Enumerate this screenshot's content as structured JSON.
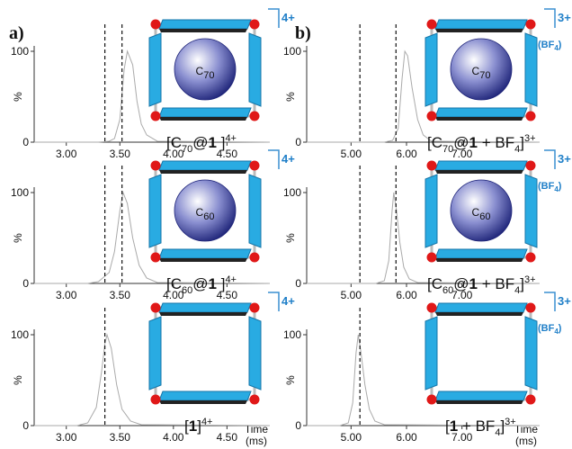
{
  "panel_labels": [
    "a)",
    "b)"
  ],
  "chart_data": [
    {
      "type": "line",
      "ylabel": "%",
      "ylim": [
        0,
        100
      ],
      "yticks": [
        0,
        100
      ],
      "xlim": [
        2.7,
        4.9
      ],
      "xticks": [
        {
          "value": 3,
          "label": "3.00"
        },
        {
          "value": 3.5,
          "label": "3.50"
        },
        {
          "value": 4,
          "label": "4.00"
        },
        {
          "value": 4.5,
          "label": "4.50"
        }
      ],
      "x": [
        2.7,
        3.3,
        3.4,
        3.45,
        3.5,
        3.54,
        3.57,
        3.62,
        3.66,
        3.7,
        3.75,
        3.85,
        4.9
      ],
      "values": [
        0,
        0,
        1,
        4,
        25,
        80,
        100,
        85,
        45,
        20,
        8,
        1,
        0
      ],
      "color": "#aaaaaa",
      "vlines": [
        3.36,
        3.52
      ],
      "label": [
        "[C",
        "70",
        "@",
        "1",
        " ]",
        "4+"
      ],
      "guest": [
        "C",
        "70"
      ],
      "charge": "4+"
    },
    {
      "type": "line",
      "ylabel": "%",
      "ylim": [
        0,
        100
      ],
      "yticks": [
        0,
        100
      ],
      "xlim": [
        2.7,
        4.9
      ],
      "xticks": [
        {
          "value": 3,
          "label": "3.00"
        },
        {
          "value": 3.5,
          "label": "3.50"
        },
        {
          "value": 4,
          "label": "4.00"
        },
        {
          "value": 4.5,
          "label": "4.50"
        }
      ],
      "x": [
        2.7,
        3.2,
        3.3,
        3.4,
        3.45,
        3.5,
        3.53,
        3.57,
        3.62,
        3.68,
        3.75,
        3.85,
        4.9
      ],
      "values": [
        0,
        0,
        2,
        12,
        35,
        80,
        100,
        88,
        50,
        20,
        6,
        1,
        0
      ],
      "color": "#aaaaaa",
      "vlines": [
        3.36,
        3.52
      ],
      "label": [
        "[C",
        "60",
        "@",
        "1",
        " ]",
        "4+"
      ],
      "guest": [
        "C",
        "60"
      ],
      "charge": "4+"
    },
    {
      "type": "line",
      "ylabel": "%",
      "ylim": [
        0,
        100
      ],
      "yticks": [
        0,
        100
      ],
      "xlim": [
        2.7,
        4.9
      ],
      "xticks": [
        {
          "value": 3,
          "label": "3.00"
        },
        {
          "value": 3.5,
          "label": "3.50"
        },
        {
          "value": 4,
          "label": "4.00"
        },
        {
          "value": 4.5,
          "label": "4.50"
        }
      ],
      "x": [
        2.7,
        3.1,
        3.2,
        3.28,
        3.33,
        3.36,
        3.38,
        3.42,
        3.47,
        3.52,
        3.6,
        3.7,
        4.9
      ],
      "values": [
        0,
        0,
        3,
        20,
        60,
        90,
        100,
        85,
        45,
        18,
        5,
        1,
        0
      ],
      "color": "#aaaaaa",
      "vlines": [
        3.36
      ],
      "label": [
        "[",
        "1",
        "]",
        "4+"
      ],
      "charge": "4+",
      "xlabel": [
        "Time",
        "(ms)"
      ]
    },
    {
      "type": "line",
      "ylabel": "%",
      "ylim": [
        0,
        100
      ],
      "yticks": [
        0,
        100
      ],
      "xlim": [
        4.2,
        8.4
      ],
      "xticks": [
        {
          "value": 5,
          "label": "5.00"
        },
        {
          "value": 6,
          "label": "6.00"
        },
        {
          "value": 7,
          "label": "7.00"
        }
      ],
      "x": [
        4.2,
        5.6,
        5.75,
        5.85,
        5.92,
        5.97,
        6.02,
        6.1,
        6.2,
        6.3,
        6.45,
        8.4
      ],
      "values": [
        0,
        0,
        2,
        15,
        70,
        100,
        95,
        60,
        25,
        8,
        1,
        0
      ],
      "color": "#aaaaaa",
      "vlines": [
        5.16,
        5.81
      ],
      "label": [
        "[C",
        "70",
        "@",
        "1",
        " + BF",
        "4",
        "]",
        "3+"
      ],
      "guest": [
        "C",
        "70"
      ],
      "charge": "3+",
      "counterion": [
        "(BF",
        "4",
        ")"
      ]
    },
    {
      "type": "line",
      "ylabel": "%",
      "ylim": [
        0,
        100
      ],
      "yticks": [
        0,
        100
      ],
      "xlim": [
        4.2,
        8.4
      ],
      "xticks": [
        {
          "value": 5,
          "label": "5.00"
        },
        {
          "value": 6,
          "label": "6.00"
        },
        {
          "value": 7,
          "label": "7.00"
        }
      ],
      "x": [
        4.2,
        5.45,
        5.6,
        5.68,
        5.74,
        5.77,
        5.82,
        5.88,
        5.95,
        6.05,
        6.2,
        8.4
      ],
      "values": [
        0,
        0,
        3,
        25,
        80,
        100,
        80,
        45,
        18,
        5,
        1,
        0
      ],
      "color": "#aaaaaa",
      "vlines": [
        5.16,
        5.81
      ],
      "label": [
        "[C",
        "60",
        "@",
        "1",
        " + BF",
        "4",
        "]",
        "3+"
      ],
      "guest": [
        "C",
        "60"
      ],
      "charge": "3+",
      "counterion": [
        "(BF",
        "4",
        ")"
      ]
    },
    {
      "type": "line",
      "ylabel": "%",
      "ylim": [
        0,
        100
      ],
      "yticks": [
        0,
        100
      ],
      "xlim": [
        4.2,
        8.4
      ],
      "xticks": [
        {
          "value": 5,
          "label": "5.00"
        },
        {
          "value": 6,
          "label": "6.00"
        },
        {
          "value": 7,
          "label": "7.00"
        }
      ],
      "x": [
        4.2,
        4.8,
        4.95,
        5.03,
        5.09,
        5.13,
        5.18,
        5.25,
        5.33,
        5.43,
        5.6,
        8.4
      ],
      "values": [
        0,
        0,
        3,
        25,
        80,
        100,
        80,
        45,
        18,
        5,
        1,
        0
      ],
      "color": "#aaaaaa",
      "vlines": [
        5.16
      ],
      "label": [
        "[",
        "1",
        " + BF",
        "4",
        "]",
        "3+"
      ],
      "charge": "3+",
      "counterion": [
        "(BF",
        "4",
        ")"
      ],
      "xlabel": [
        "Time",
        "(ms)"
      ]
    }
  ]
}
